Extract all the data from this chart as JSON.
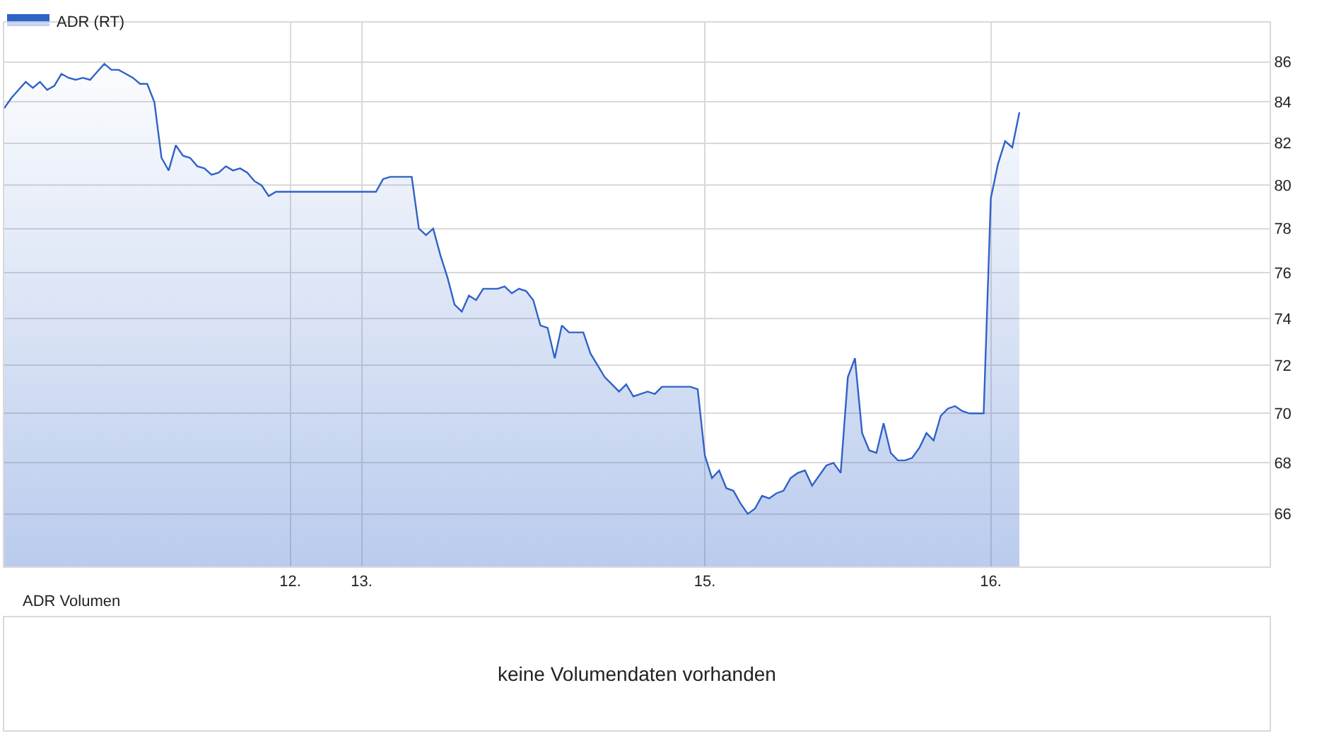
{
  "chart_data": [
    {
      "type": "area",
      "legend": "top left",
      "log": true,
      "grid": true,
      "categories": [
        null,
        null,
        null,
        null,
        null,
        null,
        null,
        null,
        null,
        null,
        null,
        null,
        null,
        null,
        null,
        null,
        null,
        null,
        null,
        null,
        null,
        null,
        null,
        null,
        null,
        null,
        null,
        null,
        null,
        null,
        null,
        null,
        null,
        null,
        null,
        null,
        null,
        null,
        null,
        null,
        "12.",
        null,
        null,
        null,
        null,
        null,
        null,
        null,
        null,
        null,
        "13.",
        null,
        null,
        null,
        null,
        null,
        null,
        null,
        null,
        null,
        null,
        null,
        null,
        null,
        null,
        null,
        null,
        null,
        null,
        null,
        null,
        null,
        null,
        null,
        null,
        null,
        null,
        null,
        null,
        null,
        null,
        null,
        null,
        null,
        null,
        null,
        null,
        null,
        null,
        null,
        null,
        null,
        null,
        null,
        null,
        null,
        null,
        null,
        "15.",
        null,
        null,
        null,
        null,
        null,
        null,
        null,
        null,
        null,
        null,
        null,
        null,
        null,
        null,
        null,
        null,
        null,
        null,
        null,
        null,
        null,
        null,
        null,
        null,
        null,
        null,
        null,
        null,
        null,
        null,
        null,
        null,
        null,
        null,
        null,
        null,
        null,
        null,
        null,
        "16.",
        null,
        null,
        null,
        null,
        null,
        null,
        null,
        null,
        null,
        null,
        null,
        null,
        null,
        null,
        null,
        null,
        null,
        null,
        null,
        null,
        null,
        null,
        null,
        null,
        null,
        null,
        null,
        null,
        null,
        null,
        null,
        null,
        null,
        null,
        null,
        null,
        null,
        null,
        null
      ],
      "series": [
        {
          "name": "ADR (RT)",
          "color": "#2f62c8",
          "values": [
            83.7,
            84.2,
            84.6,
            85.0,
            84.7,
            85.0,
            84.6,
            84.8,
            85.4,
            85.2,
            85.1,
            85.2,
            85.1,
            85.5,
            85.9,
            85.6,
            85.6,
            85.4,
            85.2,
            84.9,
            84.9,
            84.0,
            81.3,
            80.7,
            81.9,
            81.4,
            81.3,
            80.9,
            80.8,
            80.5,
            80.6,
            80.9,
            80.7,
            80.8,
            80.6,
            80.2,
            80.0,
            79.5,
            79.7,
            79.7,
            79.7,
            79.7,
            79.7,
            79.7,
            79.7,
            79.7,
            79.7,
            79.7,
            79.7,
            79.7,
            79.7,
            79.7,
            79.7,
            80.3,
            80.4,
            80.4,
            80.4,
            80.4,
            78.0,
            77.7,
            78.0,
            76.8,
            75.8,
            74.6,
            74.3,
            75.0,
            74.8,
            75.3,
            75.3,
            75.3,
            75.4,
            75.1,
            75.3,
            75.2,
            74.8,
            73.7,
            73.6,
            72.3,
            73.7,
            73.4,
            73.4,
            73.4,
            72.5,
            72.0,
            71.5,
            71.2,
            70.9,
            71.2,
            70.7,
            70.8,
            70.9,
            70.8,
            71.1,
            71.1,
            71.1,
            71.1,
            71.1,
            71.0,
            68.3,
            67.4,
            67.7,
            67.0,
            66.9,
            66.4,
            66.0,
            66.2,
            66.7,
            66.6,
            66.8,
            66.9,
            67.4,
            67.6,
            67.7,
            67.1,
            67.5,
            67.9,
            68.0,
            67.6,
            71.5,
            72.3,
            69.2,
            68.5,
            68.4,
            69.6,
            68.4,
            68.1,
            68.1,
            68.2,
            68.6,
            69.2,
            68.9,
            69.9,
            70.2,
            70.3,
            70.1,
            70.0,
            70.0,
            70.0,
            79.4,
            81.0,
            82.1,
            81.8,
            83.5,
            null,
            null,
            null,
            null,
            null,
            null,
            null,
            null,
            null,
            null,
            null,
            null,
            null,
            null,
            null,
            null,
            null,
            null,
            null,
            null,
            null,
            null,
            null,
            null,
            null,
            null,
            null,
            null,
            null,
            null,
            null,
            null,
            null,
            null,
            null
          ]
        }
      ],
      "ylim": [
        64,
        88
      ],
      "yticks": [
        66,
        68,
        70,
        72,
        74,
        76,
        78,
        80,
        82,
        84,
        86
      ]
    },
    {
      "type": "other",
      "title": "ADR Volumen",
      "annotations": [
        "keine Volumendaten vorhanden"
      ]
    }
  ]
}
